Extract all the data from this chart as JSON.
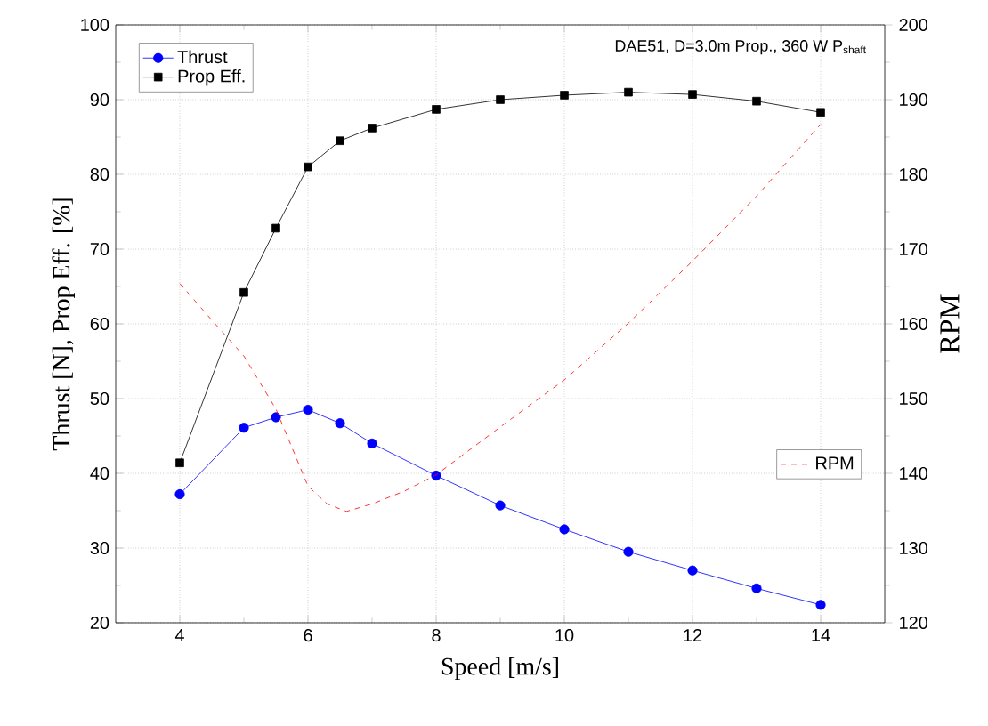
{
  "chart_data": {
    "type": "line",
    "title": "DAE51, D=3.0m Prop., 360 W  P$_{shaft}$",
    "xlabel": "Speed   [m/s]",
    "ylabel": "Thrust [N],  Prop Eff. [%]",
    "y2label": "RPM",
    "xlim": [
      3,
      15
    ],
    "xticks": [
      4,
      6,
      8,
      10,
      12,
      14
    ],
    "ylim": [
      20,
      100
    ],
    "yticks": [
      20,
      30,
      40,
      50,
      60,
      70,
      80,
      90,
      100
    ],
    "y2lim": [
      120,
      200
    ],
    "y2ticks": [
      120,
      130,
      140,
      150,
      160,
      170,
      180,
      190,
      200
    ],
    "grid": true,
    "legend": "top left",
    "series": [
      {
        "name": "Thrust",
        "color": "#0000ff",
        "marker": "circle",
        "line_style": "solid",
        "x": [
          4,
          5,
          5.5,
          6,
          6.5,
          7,
          8,
          9,
          10,
          11,
          12,
          13,
          14
        ],
        "values": [
          37.2,
          46.1,
          47.5,
          48.5,
          46.7,
          44.0,
          39.7,
          35.7,
          32.5,
          29.5,
          27.0,
          24.6,
          22.4
        ]
      },
      {
        "name": "Prop Eff.",
        "color": "#000000",
        "marker": "square",
        "line_style": "solid",
        "x": [
          4,
          5,
          5.5,
          6,
          6.5,
          7,
          8,
          9,
          10,
          11,
          12,
          13,
          14
        ],
        "values": [
          41.4,
          64.2,
          72.8,
          81.0,
          84.5,
          86.2,
          88.7,
          90.0,
          90.6,
          91.0,
          90.7,
          89.8,
          88.3
        ]
      },
      {
        "name": "RPM",
        "color": "#ff0000",
        "marker": "none",
        "line_style": "dashed",
        "axis": "y2",
        "x": [
          4,
          4.5,
          5,
          5.5,
          6,
          6.3,
          6.6,
          7,
          7.5,
          8,
          9,
          10,
          11,
          12,
          13,
          14
        ],
        "values": [
          165.4,
          160.5,
          155.7,
          148.6,
          138.3,
          135.9,
          134.9,
          135.9,
          137.6,
          139.8,
          146.2,
          152.5,
          160.1,
          168.4,
          177.1,
          186.7
        ]
      }
    ]
  }
}
